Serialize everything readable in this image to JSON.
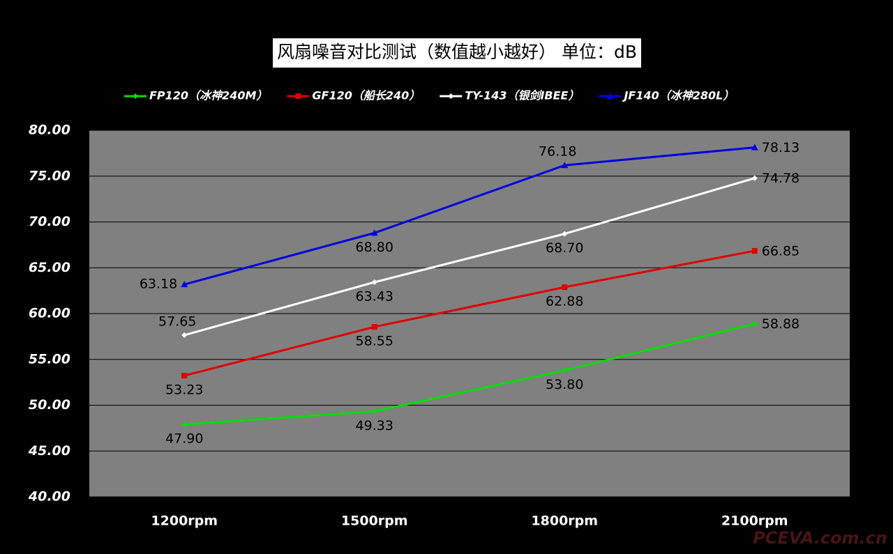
{
  "chart_data": {
    "type": "line",
    "title": "风扇噪音对比测试（数值越小越好） 单位：dB",
    "categories": [
      "1200rpm",
      "1500rpm",
      "1800rpm",
      "2100rpm"
    ],
    "series": [
      {
        "name": "FP120（冰神240M）",
        "color": "#00e000",
        "marker": "diamond",
        "values": [
          47.9,
          49.33,
          53.8,
          58.88
        ],
        "value_labels": [
          "47.90",
          "49.33",
          "53.80",
          "58.88"
        ]
      },
      {
        "name": "GF120（船长240）",
        "color": "#e00000",
        "marker": "square",
        "values": [
          53.23,
          58.55,
          62.88,
          66.85
        ],
        "value_labels": [
          "53.23",
          "58.55",
          "62.88",
          "66.85"
        ]
      },
      {
        "name": "TY-143（银剑IBEE）",
        "color": "#ffffff",
        "marker": "diamond",
        "values": [
          57.65,
          63.43,
          68.7,
          74.78
        ],
        "value_labels": [
          "57.65",
          "63.43",
          "68.70",
          "74.78"
        ]
      },
      {
        "name": "JF140（冰神280L）",
        "color": "#0000e0",
        "marker": "triangle",
        "values": [
          63.18,
          68.8,
          76.18,
          78.13
        ],
        "value_labels": [
          "63.18",
          "68.80",
          "76.18",
          "78.13"
        ]
      }
    ],
    "ylim": [
      40,
      80
    ],
    "yticks": [
      {
        "value": 40,
        "label": "40.00"
      },
      {
        "value": 45,
        "label": "45.00"
      },
      {
        "value": 50,
        "label": "50.00"
      },
      {
        "value": 55,
        "label": "55.00"
      },
      {
        "value": 60,
        "label": "60.00"
      },
      {
        "value": 65,
        "label": "65.00"
      },
      {
        "value": 70,
        "label": "70.00"
      },
      {
        "value": 75,
        "label": "75.00"
      },
      {
        "value": 80,
        "label": "80.00"
      }
    ],
    "grid": true,
    "legend": "top",
    "watermark": "PCEVA.com.cn"
  }
}
